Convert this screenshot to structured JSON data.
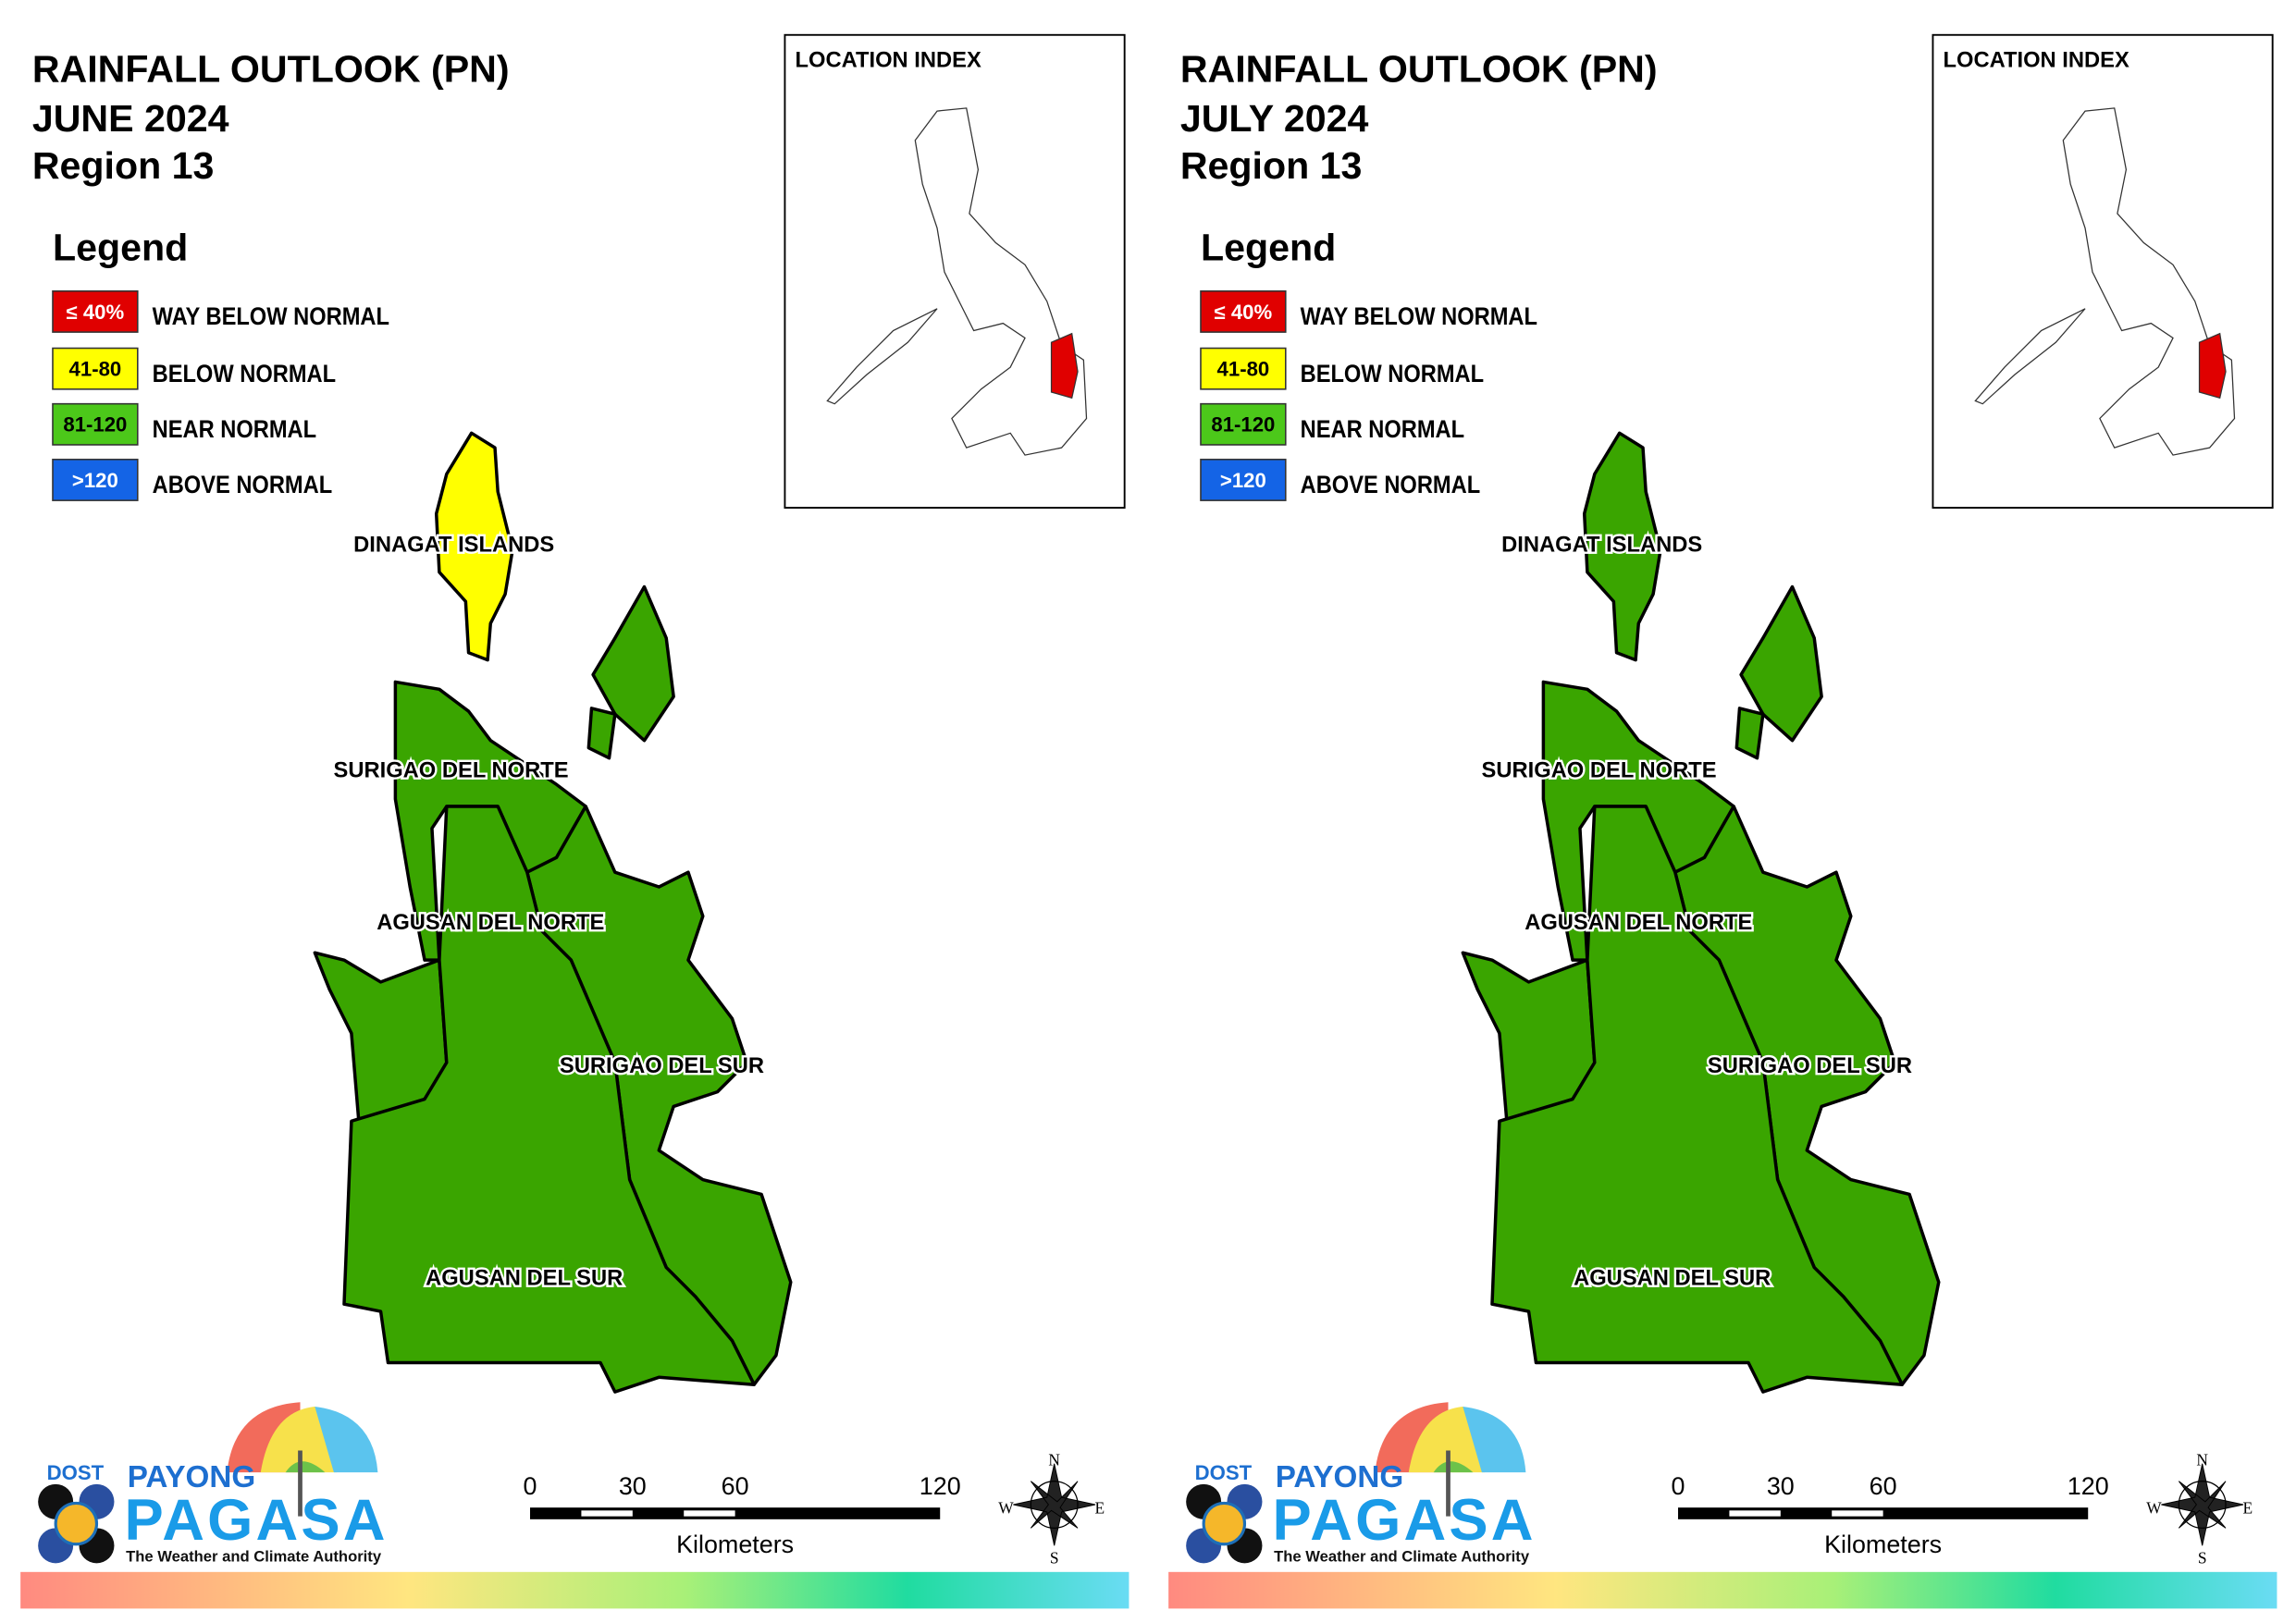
{
  "panels": [
    {
      "title": [
        "RAINFALL OUTLOOK (PN)",
        "JUNE 2024",
        "Region 13"
      ],
      "legend_title": "Legend",
      "legend": [
        {
          "key": "≤ 40%",
          "label": "WAY BELOW NORMAL",
          "color": "#e00000"
        },
        {
          "key": "41-80",
          "label": "BELOW NORMAL",
          "color": "#ffff00"
        },
        {
          "key": "81-120",
          "label": "NEAR NORMAL",
          "color": "#4cc81a"
        },
        {
          "key": ">120",
          "label": "ABOVE NORMAL",
          "color": "#1464e6"
        }
      ],
      "location_index": "LOCATION INDEX",
      "provinces": [
        {
          "name": "DINAGAT ISLANDS",
          "color": "#ffff00"
        },
        {
          "name": "SURIGAO DEL NORTE",
          "color": "#3aa500"
        },
        {
          "name": "AGUSAN DEL NORTE",
          "color": "#3aa500"
        },
        {
          "name": "SURIGAO DEL SUR",
          "color": "#3aa500"
        },
        {
          "name": "AGUSAN DEL SUR",
          "color": "#3aa500"
        }
      ],
      "scale": {
        "ticks": [
          0,
          30,
          60,
          120
        ],
        "unit": "Kilometers"
      },
      "compass": [
        "N",
        "E",
        "S",
        "W"
      ],
      "logo": {
        "agency": "DOST",
        "brand": "PAYONG",
        "name": "PAGASA",
        "tagline": "The Weather and Climate Authority"
      }
    },
    {
      "title": [
        "RAINFALL OUTLOOK (PN)",
        "JULY 2024",
        "Region 13"
      ],
      "legend_title": "Legend",
      "legend": [
        {
          "key": "≤ 40%",
          "label": "WAY BELOW NORMAL",
          "color": "#e00000"
        },
        {
          "key": "41-80",
          "label": "BELOW NORMAL",
          "color": "#ffff00"
        },
        {
          "key": "81-120",
          "label": "NEAR NORMAL",
          "color": "#4cc81a"
        },
        {
          "key": ">120",
          "label": "ABOVE NORMAL",
          "color": "#1464e6"
        }
      ],
      "location_index": "LOCATION INDEX",
      "provinces": [
        {
          "name": "DINAGAT ISLANDS",
          "color": "#3aa500"
        },
        {
          "name": "SURIGAO DEL NORTE",
          "color": "#3aa500"
        },
        {
          "name": "AGUSAN DEL NORTE",
          "color": "#3aa500"
        },
        {
          "name": "SURIGAO DEL SUR",
          "color": "#3aa500"
        },
        {
          "name": "AGUSAN DEL SUR",
          "color": "#3aa500"
        }
      ],
      "scale": {
        "ticks": [
          0,
          30,
          60,
          120
        ],
        "unit": "Kilometers"
      },
      "compass": [
        "N",
        "E",
        "S",
        "W"
      ],
      "logo": {
        "agency": "DOST",
        "brand": "PAYONG",
        "name": "PAGASA",
        "tagline": "The Weather and Climate Authority"
      }
    }
  ]
}
